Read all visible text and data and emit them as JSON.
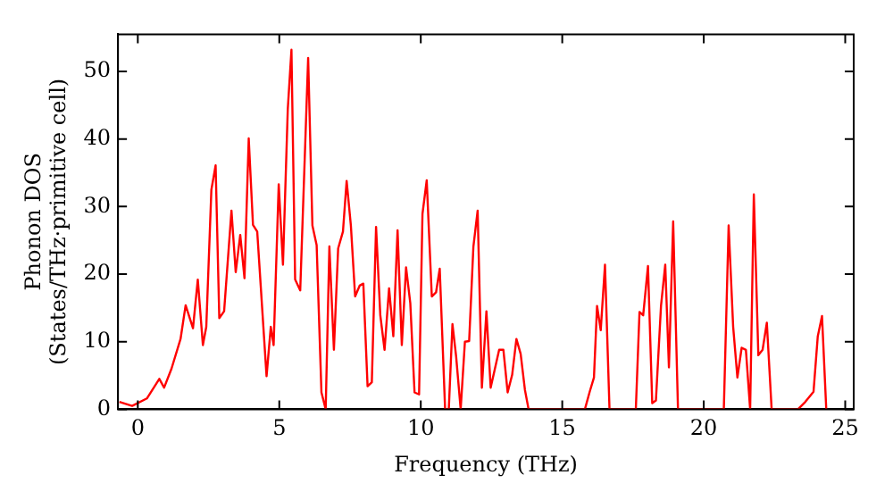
{
  "chart_data": {
    "type": "line",
    "xlabel": "Frequency (THz)",
    "ylabel": "Phonon DOS\n(States/THz·primitive cell)",
    "xlim": [
      -0.7,
      25.3
    ],
    "ylim": [
      0,
      55.5
    ],
    "xticks": [
      0,
      5,
      10,
      15,
      20,
      25
    ],
    "yticks": [
      0,
      10,
      20,
      30,
      40,
      50
    ],
    "grid": false,
    "legend": false,
    "marker": "none",
    "line_style": "solid",
    "series": [
      {
        "color": "#ff0000",
        "x": [
          -0.65,
          -0.2,
          0.32,
          0.76,
          0.93,
          1.19,
          1.51,
          1.69,
          1.95,
          2.12,
          2.3,
          2.42,
          2.6,
          2.75,
          2.88,
          3.05,
          3.31,
          3.46,
          3.62,
          3.77,
          3.92,
          4.07,
          4.22,
          4.55,
          4.7,
          4.8,
          4.98,
          5.13,
          5.3,
          5.43,
          5.56,
          5.74,
          6.02,
          6.17,
          6.32,
          6.49,
          6.64,
          6.77,
          6.93,
          7.08,
          7.25,
          7.38,
          7.53,
          7.68,
          7.84,
          7.97,
          8.12,
          8.27,
          8.42,
          8.57,
          8.72,
          8.88,
          9.03,
          9.18,
          9.33,
          9.48,
          9.63,
          9.78,
          9.94,
          10.06,
          10.21,
          10.39,
          10.54,
          10.67,
          10.86,
          10.99,
          11.12,
          11.25,
          11.41,
          11.56,
          11.71,
          11.86,
          12.01,
          12.16,
          12.32,
          12.47,
          12.62,
          12.77,
          12.92,
          13.07,
          13.23,
          13.38,
          13.53,
          13.68,
          13.81,
          15.8,
          15.97,
          16.12,
          16.23,
          16.36,
          16.51,
          16.67,
          17.6,
          17.73,
          17.86,
          18.03,
          18.18,
          18.31,
          18.49,
          18.64,
          18.77,
          18.92,
          19.09,
          20.71,
          20.88,
          21.04,
          21.19,
          21.34,
          21.49,
          21.64,
          21.77,
          21.93,
          22.08,
          22.23,
          22.4,
          23.33,
          23.59,
          23.88,
          24.03,
          24.18,
          24.33
        ],
        "values": [
          1.1,
          0.5,
          1.6,
          4.5,
          3.2,
          6,
          10.4,
          15.4,
          12,
          19.2,
          9.5,
          12.2,
          32.5,
          36.1,
          13.5,
          14.5,
          29.4,
          20.3,
          25.8,
          19.4,
          40.1,
          27.3,
          26.3,
          4.9,
          12.2,
          9.5,
          33.3,
          21.4,
          44.4,
          53.2,
          19.2,
          17.6,
          52,
          27.2,
          24.3,
          2.5,
          0,
          24.1,
          8.8,
          23.8,
          26.3,
          33.8,
          27.2,
          16.7,
          18.3,
          18.6,
          3.4,
          4,
          27,
          13.9,
          8.8,
          17.9,
          10.8,
          26.5,
          9.5,
          21,
          15.7,
          2.5,
          2.2,
          28.9,
          33.9,
          16.7,
          17.3,
          20.8,
          0,
          0,
          12.6,
          7.8,
          0,
          10,
          10.1,
          24.1,
          29.4,
          3.2,
          14.5,
          3.2,
          6,
          8.8,
          8.8,
          2.5,
          5.1,
          10.4,
          8.2,
          2.9,
          0,
          0,
          2.6,
          4.7,
          15.3,
          11.7,
          21.4,
          0,
          0,
          14.4,
          13.9,
          21.2,
          0.9,
          1.3,
          15.3,
          21.4,
          6.2,
          27.8,
          0,
          0,
          27.2,
          12.2,
          4.7,
          9.1,
          8.8,
          0,
          31.8,
          8,
          8.8,
          12.8,
          0,
          0,
          1.1,
          2.6,
          10.8,
          13.8,
          0
        ]
      }
    ]
  }
}
